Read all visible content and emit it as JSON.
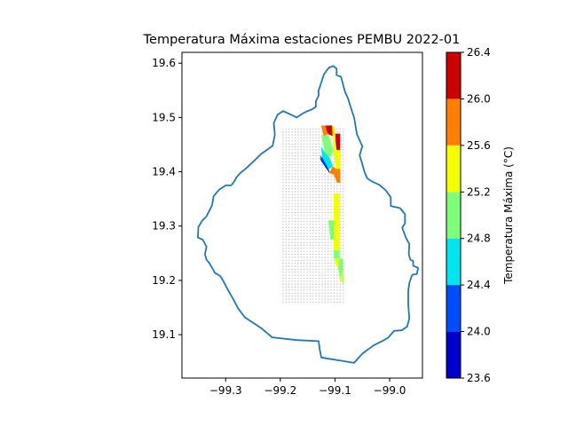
{
  "chart_data": {
    "type": "filled-contour-map",
    "title": "Temperatura Máxima estaciones PEMBU 2022-01",
    "xlim": [
      -99.38,
      -98.94
    ],
    "ylim": [
      19.02,
      19.62
    ],
    "x_ticks": [
      -99.3,
      -99.2,
      -99.1,
      -99.0
    ],
    "x_tick_labels": [
      "−99.3",
      "−99.2",
      "−99.1",
      "−99.0"
    ],
    "y_ticks": [
      19.1,
      19.2,
      19.3,
      19.4,
      19.5,
      19.6
    ],
    "y_tick_labels": [
      "19.1",
      "19.2",
      "19.3",
      "19.4",
      "19.5",
      "19.6"
    ],
    "outline_color": "#1f77b4",
    "boundary": [
      [
        -99.111,
        19.592
      ],
      [
        -99.103,
        19.595
      ],
      [
        -99.097,
        19.59
      ],
      [
        -99.097,
        19.578
      ],
      [
        -99.089,
        19.575
      ],
      [
        -99.085,
        19.56
      ],
      [
        -99.082,
        19.548
      ],
      [
        -99.076,
        19.535
      ],
      [
        -99.07,
        19.515
      ],
      [
        -99.065,
        19.5
      ],
      [
        -99.06,
        19.47
      ],
      [
        -99.055,
        19.458
      ],
      [
        -99.05,
        19.447
      ],
      [
        -99.055,
        19.43
      ],
      [
        -99.051,
        19.418
      ],
      [
        -99.046,
        19.4
      ],
      [
        -99.041,
        19.388
      ],
      [
        -99.032,
        19.382
      ],
      [
        -99.019,
        19.376
      ],
      [
        -99.007,
        19.366
      ],
      [
        -98.998,
        19.353
      ],
      [
        -98.998,
        19.337
      ],
      [
        -98.981,
        19.333
      ],
      [
        -98.972,
        19.322
      ],
      [
        -98.972,
        19.305
      ],
      [
        -98.977,
        19.297
      ],
      [
        -98.97,
        19.278
      ],
      [
        -98.964,
        19.267
      ],
      [
        -98.965,
        19.248
      ],
      [
        -98.962,
        19.238
      ],
      [
        -98.957,
        19.236
      ],
      [
        -98.957,
        19.227
      ],
      [
        -98.948,
        19.223
      ],
      [
        -98.95,
        19.212
      ],
      [
        -98.959,
        19.21
      ],
      [
        -98.964,
        19.195
      ],
      [
        -98.966,
        19.18
      ],
      [
        -98.966,
        19.155
      ],
      [
        -98.964,
        19.13
      ],
      [
        -98.968,
        19.115
      ],
      [
        -98.978,
        19.108
      ],
      [
        -98.992,
        19.107
      ],
      [
        -99.002,
        19.095
      ],
      [
        -99.012,
        19.089
      ],
      [
        -99.03,
        19.08
      ],
      [
        -99.05,
        19.065
      ],
      [
        -99.065,
        19.048
      ],
      [
        -99.095,
        19.053
      ],
      [
        -99.125,
        19.058
      ],
      [
        -99.128,
        19.073
      ],
      [
        -99.13,
        19.088
      ],
      [
        -99.17,
        19.09
      ],
      [
        -99.215,
        19.095
      ],
      [
        -99.235,
        19.112
      ],
      [
        -99.265,
        19.132
      ],
      [
        -99.277,
        19.148
      ],
      [
        -99.286,
        19.165
      ],
      [
        -99.296,
        19.183
      ],
      [
        -99.305,
        19.2
      ],
      [
        -99.31,
        19.208
      ],
      [
        -99.32,
        19.214
      ],
      [
        -99.323,
        19.22
      ],
      [
        -99.33,
        19.232
      ],
      [
        -99.335,
        19.238
      ],
      [
        -99.338,
        19.248
      ],
      [
        -99.335,
        19.262
      ],
      [
        -99.342,
        19.275
      ],
      [
        -99.351,
        19.279
      ],
      [
        -99.35,
        19.298
      ],
      [
        -99.343,
        19.31
      ],
      [
        -99.335,
        19.318
      ],
      [
        -99.325,
        19.338
      ],
      [
        -99.322,
        19.355
      ],
      [
        -99.312,
        19.367
      ],
      [
        -99.3,
        19.375
      ],
      [
        -99.29,
        19.375
      ],
      [
        -99.285,
        19.381
      ],
      [
        -99.28,
        19.39
      ],
      [
        -99.273,
        19.398
      ],
      [
        -99.262,
        19.407
      ],
      [
        -99.245,
        19.423
      ],
      [
        -99.235,
        19.433
      ],
      [
        -99.225,
        19.44
      ],
      [
        -99.214,
        19.448
      ],
      [
        -99.21,
        19.468
      ],
      [
        -99.212,
        19.49
      ],
      [
        -99.205,
        19.505
      ],
      [
        -99.195,
        19.512
      ],
      [
        -99.18,
        19.505
      ],
      [
        -99.17,
        19.5
      ],
      [
        -99.158,
        19.508
      ],
      [
        -99.15,
        19.512
      ],
      [
        -99.142,
        19.515
      ],
      [
        -99.135,
        19.52
      ],
      [
        -99.135,
        19.53
      ],
      [
        -99.13,
        19.54
      ],
      [
        -99.13,
        19.55
      ],
      [
        -99.125,
        19.565
      ],
      [
        -99.12,
        19.58
      ],
      [
        -99.111,
        19.592
      ]
    ],
    "grid_points": {
      "x_range": [
        -99.195,
        -99.085
      ],
      "y_range": [
        19.16,
        19.48
      ],
      "step": 0.0055,
      "color": "#b0b0b0"
    },
    "filled_regions": [
      {
        "level": 5,
        "polygon": [
          [
            -99.125,
            19.485
          ],
          [
            -99.117,
            19.485
          ],
          [
            -99.113,
            19.47
          ],
          [
            -99.12,
            19.465
          ]
        ]
      },
      {
        "level": 6,
        "polygon": [
          [
            -99.117,
            19.485
          ],
          [
            -99.105,
            19.485
          ],
          [
            -99.102,
            19.465
          ],
          [
            -99.113,
            19.47
          ]
        ]
      },
      {
        "level": 6,
        "polygon": [
          [
            -99.1,
            19.47
          ],
          [
            -99.091,
            19.47
          ],
          [
            -99.091,
            19.44
          ],
          [
            -99.097,
            19.44
          ]
        ]
      },
      {
        "level": 4,
        "polygon": [
          [
            -99.105,
            19.485
          ],
          [
            -99.1,
            19.48
          ],
          [
            -99.099,
            19.44
          ],
          [
            -99.091,
            19.44
          ],
          [
            -99.091,
            19.405
          ],
          [
            -99.098,
            19.405
          ],
          [
            -99.103,
            19.44
          ]
        ]
      },
      {
        "level": 3,
        "polygon": [
          [
            -99.125,
            19.468
          ],
          [
            -99.12,
            19.465
          ],
          [
            -99.113,
            19.47
          ],
          [
            -99.103,
            19.44
          ],
          [
            -99.11,
            19.425
          ],
          [
            -99.118,
            19.435
          ]
        ]
      },
      {
        "level": 2,
        "polygon": [
          [
            -99.125,
            19.445
          ],
          [
            -99.118,
            19.435
          ],
          [
            -99.11,
            19.425
          ],
          [
            -99.104,
            19.41
          ],
          [
            -99.112,
            19.405
          ],
          [
            -99.123,
            19.425
          ]
        ]
      },
      {
        "level": 1,
        "polygon": [
          [
            -99.127,
            19.43
          ],
          [
            -99.123,
            19.425
          ],
          [
            -99.112,
            19.405
          ],
          [
            -99.11,
            19.398
          ],
          [
            -99.125,
            19.42
          ]
        ]
      },
      {
        "level": 0,
        "polygon": [
          [
            -99.127,
            19.425
          ],
          [
            -99.125,
            19.42
          ],
          [
            -99.11,
            19.398
          ],
          [
            -99.119,
            19.412
          ]
        ]
      },
      {
        "level": 5,
        "polygon": [
          [
            -99.104,
            19.41
          ],
          [
            -99.098,
            19.405
          ],
          [
            -99.091,
            19.405
          ],
          [
            -99.091,
            19.38
          ],
          [
            -99.096,
            19.38
          ],
          [
            -99.102,
            19.395
          ],
          [
            -99.11,
            19.398
          ]
        ]
      },
      {
        "level": 4,
        "polygon": [
          [
            -99.102,
            19.36
          ],
          [
            -99.092,
            19.36
          ],
          [
            -99.092,
            19.255
          ],
          [
            -99.102,
            19.255
          ]
        ]
      },
      {
        "level": 3,
        "polygon": [
          [
            -99.112,
            19.31
          ],
          [
            -99.102,
            19.31
          ],
          [
            -99.102,
            19.275
          ],
          [
            -99.108,
            19.275
          ]
        ]
      },
      {
        "level": 3,
        "polygon": [
          [
            -99.102,
            19.255
          ],
          [
            -99.092,
            19.255
          ],
          [
            -99.092,
            19.24
          ],
          [
            -99.102,
            19.24
          ]
        ]
      },
      {
        "level": 4,
        "polygon": [
          [
            -99.1,
            19.24
          ],
          [
            -99.092,
            19.24
          ],
          [
            -99.086,
            19.218
          ],
          [
            -99.094,
            19.222
          ],
          [
            -99.1,
            19.232
          ]
        ]
      },
      {
        "level": 3,
        "polygon": [
          [
            -99.092,
            19.24
          ],
          [
            -99.086,
            19.24
          ],
          [
            -99.085,
            19.195
          ],
          [
            -99.09,
            19.2
          ],
          [
            -99.094,
            19.222
          ]
        ]
      },
      {
        "level": 4,
        "polygon": [
          [
            -99.086,
            19.218
          ],
          [
            -99.086,
            19.195
          ],
          [
            -99.09,
            19.2
          ]
        ]
      }
    ],
    "colorbar": {
      "label": "Temperatura Máxima (°C)",
      "levels": [
        23.6,
        24.0,
        24.4,
        24.8,
        25.2,
        25.6,
        26.0,
        26.4
      ],
      "level_labels": [
        "23.6",
        "24.0",
        "24.4",
        "24.8",
        "25.2",
        "25.6",
        "26.0",
        "26.4"
      ],
      "colors": [
        "#0000cc",
        "#004cff",
        "#00e5ee",
        "#7dff7a",
        "#f2ff00",
        "#ff7f00",
        "#cc0000"
      ]
    }
  }
}
